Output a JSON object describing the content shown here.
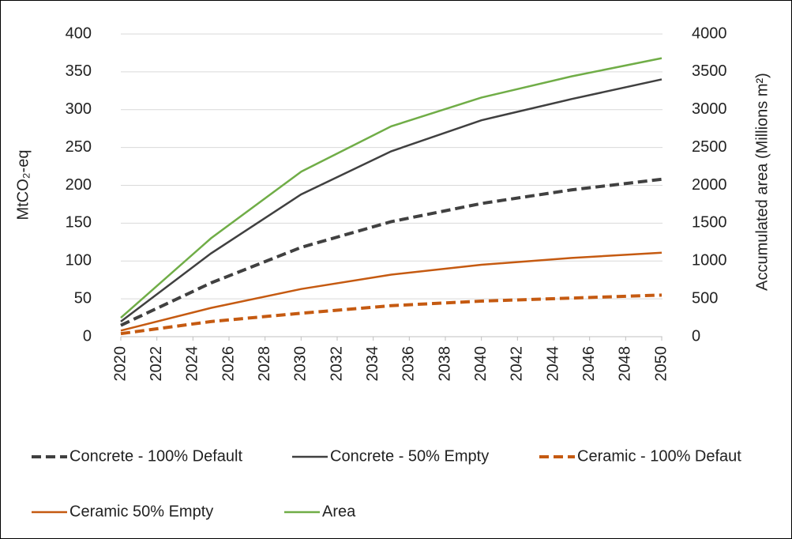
{
  "chart_data": {
    "type": "line",
    "x": [
      2020,
      2025,
      2030,
      2035,
      2040,
      2045,
      2050
    ],
    "xlim": [
      2020,
      2050
    ],
    "xticks": [
      2020,
      2022,
      2024,
      2026,
      2028,
      2030,
      2032,
      2034,
      2036,
      2038,
      2040,
      2042,
      2044,
      2046,
      2048,
      2050
    ],
    "ylabel": "MtCO₂-eq",
    "y2label": "Accumulated area (Millions m²)",
    "ylim": [
      0,
      400
    ],
    "yticks": [
      0,
      50,
      100,
      150,
      200,
      250,
      300,
      350,
      400
    ],
    "y2lim": [
      0,
      4000
    ],
    "y2ticks": [
      0,
      500,
      1000,
      1500,
      2000,
      2500,
      3000,
      3500,
      4000
    ],
    "grid": true,
    "legend": "bottom",
    "series": [
      {
        "name": "Concrete - 100% Default",
        "color": "#404040",
        "dashed": true,
        "values": [
          15,
          71,
          118,
          152,
          176,
          194,
          208
        ]
      },
      {
        "name": "Concrete - 50% Empty",
        "color": "#404040",
        "dashed": false,
        "values": [
          20,
          110,
          188,
          245,
          286,
          314,
          340
        ]
      },
      {
        "name": "Ceramic - 100% Defaut",
        "color": "#c55a11",
        "dashed": true,
        "values": [
          4,
          20,
          31,
          41,
          47,
          51,
          55
        ]
      },
      {
        "name": "Ceramic 50% Empty",
        "color": "#c55a11",
        "dashed": false,
        "values": [
          8,
          38,
          63,
          82,
          95,
          104,
          111
        ]
      },
      {
        "name": "Area",
        "color": "#70ad47",
        "dashed": false,
        "axis": "y2",
        "values": [
          250,
          1300,
          2180,
          2780,
          3160,
          3440,
          3680
        ]
      }
    ]
  }
}
